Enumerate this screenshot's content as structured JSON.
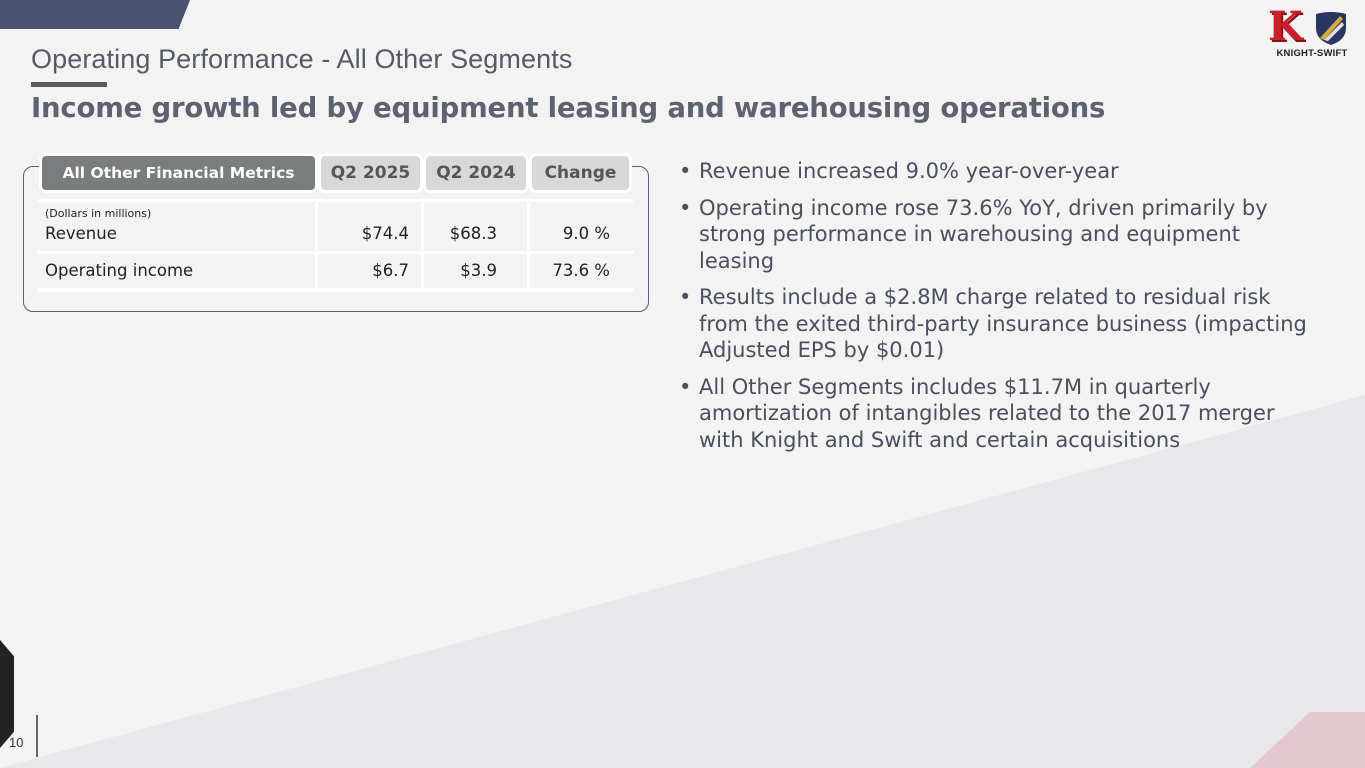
{
  "header": {
    "section_title": "Operating Performance - All Other Segments",
    "headline": "Income growth led by equipment leasing and warehousing operations"
  },
  "logo": {
    "text": "KNIGHT-SWIFT",
    "colors": {
      "knight_red": "#c8202a",
      "swift_navy": "#2a3560",
      "swift_gold": "#d9a73a"
    }
  },
  "table": {
    "headers": {
      "metrics": "All Other  Financial Metrics",
      "q1": "Q2 2025",
      "q2": "Q2 2024",
      "change": "Change"
    },
    "units_note": "(Dollars in millions)",
    "rows": [
      {
        "label": "Revenue",
        "q2_2025": "$74.4",
        "q2_2024": "$68.3",
        "change": "9.0 %"
      },
      {
        "label": "Operating income",
        "q2_2025": "$6.7",
        "q2_2024": "$3.9",
        "change": "73.6 %"
      }
    ]
  },
  "bullets": [
    "Revenue increased 9.0% year-over-year",
    "Operating income rose 73.6% YoY, driven primarily by strong performance in warehousing and equipment leasing",
    "Results include a $2.8M charge related to residual risk from the exited third-party insurance business (impacting Adjusted EPS by $0.01)",
    "All Other Segments includes $11.7M in quarterly amortization of intangibles related to the 2017 merger with Knight and Swift and certain acquisitions"
  ],
  "footer": {
    "page_number": "10"
  },
  "colors": {
    "background": "#f3f3f4",
    "accent_navy": "#4a5470",
    "header_dark": "#7a7d7d",
    "header_light": "#d8d8d8",
    "corner_pink": "#e4c7cf"
  }
}
